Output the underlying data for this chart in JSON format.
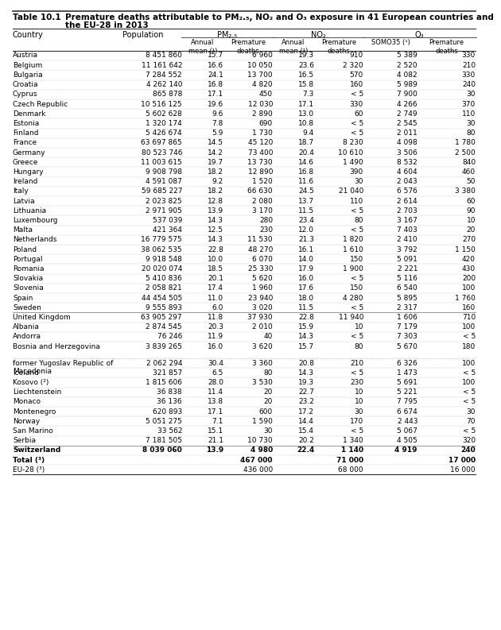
{
  "title_label": "Table 10.1",
  "title_text": "Premature deaths attributable to PM₂.₅, NO₂ and O₃ exposure in 41 European countries and the EU-28 in 2013",
  "rows": [
    [
      "Austria",
      "8 451 860",
      "15.7",
      "6 960",
      "19.3",
      "910",
      "5 389",
      "330"
    ],
    [
      "Belgium",
      "11 161 642",
      "16.6",
      "10 050",
      "23.6",
      "2 320",
      "2 520",
      "210"
    ],
    [
      "Bulgaria",
      "7 284 552",
      "24.1",
      "13 700",
      "16.5",
      "570",
      "4 082",
      "330"
    ],
    [
      "Croatia",
      "4 262 140",
      "16.8",
      "4 820",
      "15.8",
      "160",
      "5 989",
      "240"
    ],
    [
      "Cyprus",
      "865 878",
      "17.1",
      "450",
      "7.3",
      "< 5",
      "7 900",
      "30"
    ],
    [
      "Czech Republic",
      "10 516 125",
      "19.6",
      "12 030",
      "17.1",
      "330",
      "4 266",
      "370"
    ],
    [
      "Denmark",
      "5 602 628",
      "9.6",
      "2 890",
      "13.0",
      "60",
      "2 749",
      "110"
    ],
    [
      "Estonia",
      "1 320 174",
      "7.8",
      "690",
      "10.8",
      "< 5",
      "2 545",
      "30"
    ],
    [
      "Finland",
      "5 426 674",
      "5.9",
      "1 730",
      "9.4",
      "< 5",
      "2 011",
      "80"
    ],
    [
      "France",
      "63 697 865",
      "14.5",
      "45 120",
      "18.7",
      "8 230",
      "4 098",
      "1 780"
    ],
    [
      "Germany",
      "80 523 746",
      "14.2",
      "73 400",
      "20.4",
      "10 610",
      "3 506",
      "2 500"
    ],
    [
      "Greece",
      "11 003 615",
      "19.7",
      "13 730",
      "14.6",
      "1 490",
      "8 532",
      "840"
    ],
    [
      "Hungary",
      "9 908 798",
      "18.2",
      "12 890",
      "16.8",
      "390",
      "4 604",
      "460"
    ],
    [
      "Ireland",
      "4 591 087",
      "9.2",
      "1 520",
      "11.6",
      "30",
      "2 043",
      "50"
    ],
    [
      "Italy",
      "59 685 227",
      "18.2",
      "66 630",
      "24.5",
      "21 040",
      "6 576",
      "3 380"
    ],
    [
      "Latvia",
      "2 023 825",
      "12.8",
      "2 080",
      "13.7",
      "110",
      "2 614",
      "60"
    ],
    [
      "Lithuania",
      "2 971 905",
      "13.9",
      "3 170",
      "11.5",
      "< 5",
      "2 703",
      "90"
    ],
    [
      "Luxembourg",
      "537 039",
      "14.3",
      "280",
      "23.4",
      "80",
      "3 167",
      "10"
    ],
    [
      "Malta",
      "421 364",
      "12.5",
      "230",
      "12.0",
      "< 5",
      "7 403",
      "20"
    ],
    [
      "Netherlands",
      "16 779 575",
      "14.3",
      "11 530",
      "21.3",
      "1 820",
      "2 410",
      "270"
    ],
    [
      "Poland",
      "38 062 535",
      "22.8",
      "48 270",
      "16.1",
      "1 610",
      "3 792",
      "1 150"
    ],
    [
      "Portugal",
      "9 918 548",
      "10.0",
      "6 070",
      "14.0",
      "150",
      "5 091",
      "420"
    ],
    [
      "Romania",
      "20 020 074",
      "18.5",
      "25 330",
      "17.9",
      "1 900",
      "2 221",
      "430"
    ],
    [
      "Slovakia",
      "5 410 836",
      "20.1",
      "5 620",
      "16.0",
      "< 5",
      "5 116",
      "200"
    ],
    [
      "Slovenia",
      "2 058 821",
      "17.4",
      "1 960",
      "17.6",
      "150",
      "6 540",
      "100"
    ],
    [
      "Spain",
      "44 454 505",
      "11.0",
      "23 940",
      "18.0",
      "4 280",
      "5 895",
      "1 760"
    ],
    [
      "Sweden",
      "9 555 893",
      "6.0",
      "3 020",
      "11.5",
      "< 5",
      "2 317",
      "160"
    ],
    [
      "United Kingdom",
      "63 905 297",
      "11.8",
      "37 930",
      "22.8",
      "11 940",
      "1 606",
      "710"
    ],
    [
      "Albania",
      "2 874 545",
      "20.3",
      "2 010",
      "15.9",
      "10",
      "7 179",
      "100"
    ],
    [
      "Andorra",
      "76 246",
      "11.9",
      "40",
      "14.3",
      "< 5",
      "7 303",
      "< 5"
    ],
    [
      "Bosnia and Herzegovina",
      "3 839 265",
      "16.0",
      "3 620",
      "15.7",
      "80",
      "5 670",
      "180"
    ],
    [
      "former Yugoslav Republic of\nMacedonia",
      "2 062 294",
      "30.4",
      "3 360",
      "20.8",
      "210",
      "6 326",
      "100"
    ],
    [
      "Iceland",
      "321 857",
      "6.5",
      "80",
      "14.3",
      "< 5",
      "1 473",
      "< 5"
    ],
    [
      "Kosovo (²)",
      "1 815 606",
      "28.0",
      "3 530",
      "19.3",
      "230",
      "5 691",
      "100"
    ],
    [
      "Liechtenstein",
      "36 838",
      "11.4",
      "20",
      "22.7",
      "10",
      "5 221",
      "< 5"
    ],
    [
      "Monaco",
      "36 136",
      "13.8",
      "20",
      "23.2",
      "10",
      "7 795",
      "< 5"
    ],
    [
      "Montenegro",
      "620 893",
      "17.1",
      "600",
      "17.2",
      "30",
      "6 674",
      "30"
    ],
    [
      "Norway",
      "5 051 275",
      "7.1",
      "1 590",
      "14.4",
      "170",
      "2 443",
      "70"
    ],
    [
      "San Marino",
      "33 562",
      "15.1",
      "30",
      "15.4",
      "< 5",
      "5 067",
      "< 5"
    ],
    [
      "Serbia",
      "7 181 505",
      "21.1",
      "10 730",
      "20.2",
      "1 340",
      "4 505",
      "320"
    ],
    [
      "Switzerland",
      "8 039 060",
      "13.9",
      "4 980",
      "22.4",
      "1 140",
      "4 919",
      "240"
    ],
    [
      "Total (³)",
      "",
      "",
      "467 000",
      "",
      "71 000",
      "",
      "17 000"
    ],
    [
      "EU-28 (³)",
      "",
      "",
      "436 000",
      "",
      "68 000",
      "",
      "16 000"
    ]
  ],
  "thick_sep_after_rows": [
    27,
    40
  ],
  "thin_sep_after_rows": [
    31
  ],
  "bold_rows": [
    41,
    42
  ],
  "two_line_rows": [
    31
  ],
  "bg_color": "#ffffff",
  "text_color": "#000000",
  "line_color": "#333333",
  "thin_line_color": "#aaaaaa"
}
